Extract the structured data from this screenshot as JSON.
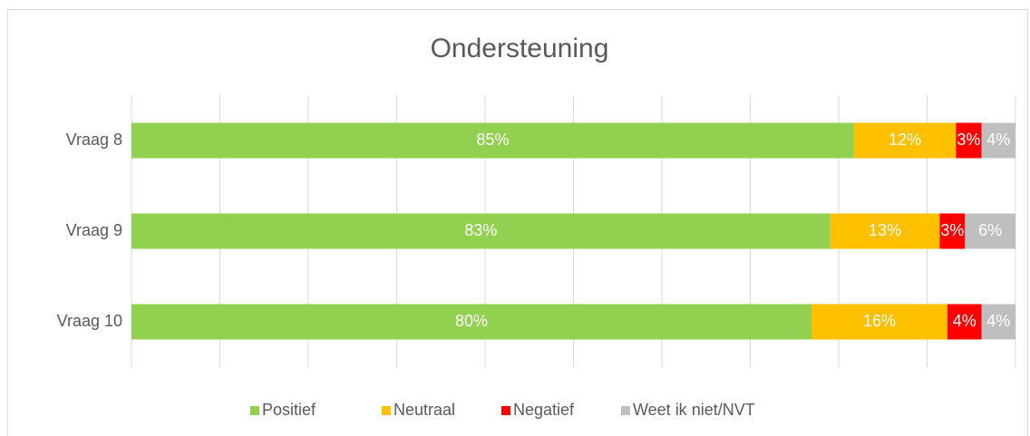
{
  "chart_data": {
    "type": "bar",
    "orientation": "horizontal",
    "stacking": "percent",
    "title": "Ondersteuning",
    "categories": [
      "Vraag 8",
      "Vraag 9",
      "Vraag 10"
    ],
    "series": [
      {
        "name": "Positief",
        "color": "#92d050",
        "values": [
          85,
          83,
          80
        ],
        "value_labels": [
          "85%",
          "83%",
          "80%"
        ]
      },
      {
        "name": "Neutraal",
        "color": "#ffc000",
        "values": [
          12,
          13,
          16
        ],
        "value_labels": [
          "12%",
          "13%",
          "16%"
        ]
      },
      {
        "name": "Negatief",
        "color": "#ff0000",
        "values": [
          3,
          3,
          4
        ],
        "value_labels": [
          "3%",
          "3%",
          "4%"
        ]
      },
      {
        "name": "Weet ik niet/NVT",
        "color": "#bfbfbf",
        "values": [
          4,
          6,
          4
        ],
        "value_labels": [
          "4%",
          "6%",
          "4%"
        ]
      }
    ],
    "xlim": [
      0,
      100
    ],
    "xticks": [
      0,
      10,
      20,
      30,
      40,
      50,
      60,
      70,
      80,
      90,
      100
    ],
    "grid": true,
    "legend": "bottom"
  }
}
